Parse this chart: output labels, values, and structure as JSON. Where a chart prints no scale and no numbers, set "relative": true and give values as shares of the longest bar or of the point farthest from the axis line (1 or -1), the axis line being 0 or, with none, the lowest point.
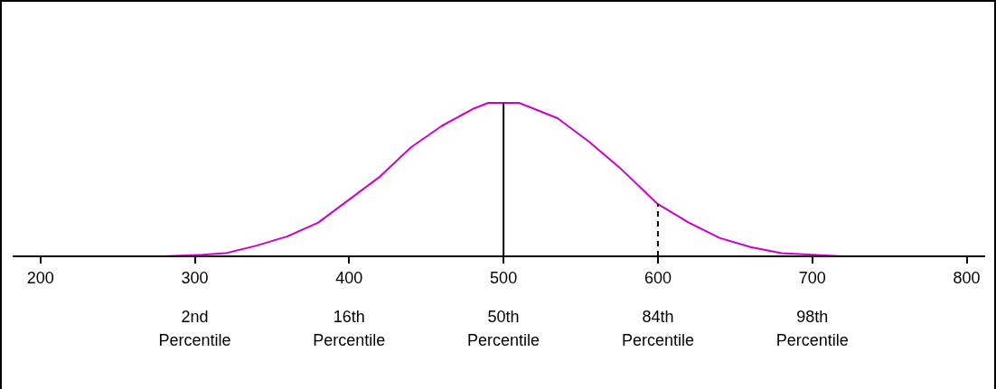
{
  "chart_data": {
    "type": "line",
    "relative": true,
    "xlim": [
      182,
      812
    ],
    "xticks": [
      200,
      300,
      400,
      500,
      600,
      700,
      800
    ],
    "x": [
      182,
      200,
      280,
      305,
      320,
      340,
      360,
      380,
      400,
      420,
      440,
      460,
      480,
      490,
      500,
      510,
      520,
      535,
      555,
      575,
      600,
      620,
      640,
      660,
      680,
      700,
      720,
      800,
      812
    ],
    "series": [
      {
        "color": "#cc00cc",
        "values": [
          0,
          0,
          0,
          0.01,
          0.02,
          0.07,
          0.13,
          0.22,
          0.37,
          0.52,
          0.71,
          0.85,
          0.96,
          1,
          1,
          1,
          0.96,
          0.9,
          0.75,
          0.58,
          0.34,
          0.22,
          0.12,
          0.06,
          0.02,
          0.01,
          0,
          0,
          0
        ]
      }
    ],
    "ref_lines": [
      {
        "axis": "x",
        "value": 500,
        "color": "#000000",
        "line_style": "solid"
      },
      {
        "axis": "x",
        "value": 600,
        "color": "#000000",
        "line_style": "dashed"
      }
    ],
    "annotations": [
      "2nd Percentile",
      "16th Percentile",
      "50th Percentile",
      "84th Percentile",
      "98th Percentile"
    ],
    "marker": "none"
  }
}
